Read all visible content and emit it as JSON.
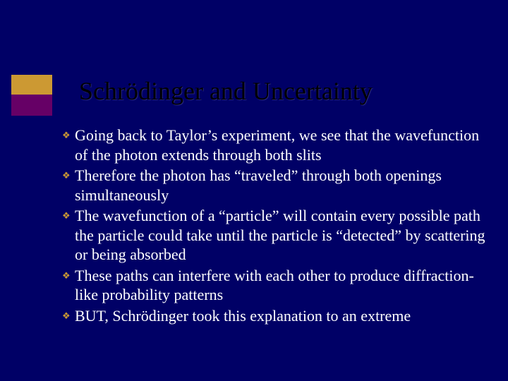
{
  "slide": {
    "title": "Schrödinger and Uncertainty",
    "background_color": "#000066",
    "accent_colors": {
      "top": "#cc9933",
      "bottom": "#660066"
    },
    "title_color": "#000000",
    "text_color": "#ffffff",
    "bullet_symbol": "❖",
    "bullet_color": "#cc9933",
    "bullets": [
      "Going back to Taylor’s experiment, we see that the wavefunction of the photon extends through both slits",
      "Therefore the photon has “traveled” through both openings simultaneously",
      "The wavefunction of a “particle” will contain every possible path the particle could take until the particle is “detected” by scattering or being absorbed",
      "These paths can interfere with each other to produce diffraction-like probability patterns",
      "BUT, Schrödinger took this explanation to an extreme"
    ]
  }
}
